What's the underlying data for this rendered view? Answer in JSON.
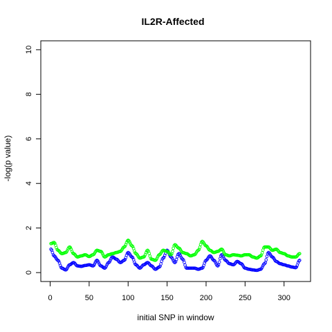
{
  "chart_data": {
    "type": "scatter",
    "title": "IL2R-Affected",
    "xlabel": "initial SNP in window",
    "ylabel": "-log(p value)",
    "xlim": [
      -12,
      334
    ],
    "ylim": [
      -0.4,
      10.4
    ],
    "x_ticks": [
      "0",
      "50",
      "100",
      "150",
      "200",
      "250",
      "300"
    ],
    "x_tick_values": [
      0,
      50,
      100,
      150,
      200,
      250,
      300
    ],
    "y_ticks": [
      "0",
      "2",
      "4",
      "6",
      "8",
      "10"
    ],
    "y_tick_values": [
      0,
      2,
      4,
      6,
      8,
      10
    ],
    "grid": false,
    "series": [
      {
        "color": "#0000ff",
        "marker": "open-circle",
        "points": [
          [
            1,
            1.05
          ],
          [
            5,
            0.75
          ],
          [
            10,
            0.55
          ],
          [
            15,
            0.2
          ],
          [
            20,
            0.12
          ],
          [
            25,
            0.35
          ],
          [
            30,
            0.45
          ],
          [
            35,
            0.3
          ],
          [
            40,
            0.28
          ],
          [
            45,
            0.32
          ],
          [
            50,
            0.35
          ],
          [
            55,
            0.3
          ],
          [
            60,
            0.55
          ],
          [
            65,
            0.3
          ],
          [
            70,
            0.2
          ],
          [
            75,
            0.45
          ],
          [
            80,
            0.7
          ],
          [
            85,
            0.6
          ],
          [
            90,
            0.45
          ],
          [
            95,
            0.55
          ],
          [
            100,
            0.9
          ],
          [
            105,
            0.7
          ],
          [
            110,
            0.35
          ],
          [
            115,
            0.2
          ],
          [
            120,
            0.35
          ],
          [
            125,
            0.45
          ],
          [
            130,
            0.3
          ],
          [
            135,
            0.15
          ],
          [
            140,
            0.25
          ],
          [
            145,
            0.65
          ],
          [
            150,
            1.0
          ],
          [
            155,
            0.7
          ],
          [
            160,
            0.45
          ],
          [
            165,
            0.85
          ],
          [
            170,
            0.6
          ],
          [
            175,
            0.2
          ],
          [
            180,
            0.2
          ],
          [
            185,
            0.2
          ],
          [
            190,
            0.15
          ],
          [
            195,
            0.2
          ],
          [
            200,
            0.55
          ],
          [
            205,
            0.75
          ],
          [
            210,
            0.55
          ],
          [
            215,
            0.3
          ],
          [
            220,
            0.8
          ],
          [
            225,
            0.55
          ],
          [
            230,
            0.4
          ],
          [
            235,
            0.35
          ],
          [
            240,
            0.5
          ],
          [
            245,
            0.4
          ],
          [
            250,
            0.2
          ],
          [
            255,
            0.15
          ],
          [
            260,
            0.12
          ],
          [
            265,
            0.1
          ],
          [
            270,
            0.15
          ],
          [
            275,
            0.4
          ],
          [
            280,
            0.9
          ],
          [
            285,
            0.7
          ],
          [
            290,
            0.5
          ],
          [
            295,
            0.4
          ],
          [
            300,
            0.35
          ],
          [
            305,
            0.3
          ],
          [
            310,
            0.25
          ],
          [
            315,
            0.22
          ],
          [
            320,
            0.55
          ]
        ]
      },
      {
        "color": "#00ff00",
        "marker": "open-circle",
        "points": [
          [
            1,
            1.3
          ],
          [
            5,
            1.35
          ],
          [
            10,
            1.0
          ],
          [
            15,
            0.85
          ],
          [
            20,
            0.9
          ],
          [
            25,
            1.15
          ],
          [
            30,
            0.85
          ],
          [
            35,
            0.7
          ],
          [
            40,
            0.75
          ],
          [
            45,
            0.8
          ],
          [
            50,
            0.72
          ],
          [
            55,
            0.8
          ],
          [
            60,
            1.0
          ],
          [
            65,
            0.95
          ],
          [
            70,
            0.7
          ],
          [
            75,
            0.8
          ],
          [
            80,
            0.85
          ],
          [
            85,
            0.9
          ],
          [
            90,
            0.95
          ],
          [
            95,
            1.15
          ],
          [
            100,
            1.45
          ],
          [
            105,
            1.2
          ],
          [
            110,
            0.85
          ],
          [
            115,
            0.65
          ],
          [
            120,
            0.7
          ],
          [
            125,
            1.0
          ],
          [
            130,
            0.6
          ],
          [
            135,
            0.55
          ],
          [
            140,
            0.8
          ],
          [
            145,
            1.0
          ],
          [
            150,
            0.95
          ],
          [
            155,
            0.8
          ],
          [
            160,
            1.25
          ],
          [
            165,
            1.1
          ],
          [
            170,
            0.9
          ],
          [
            175,
            0.85
          ],
          [
            180,
            0.75
          ],
          [
            185,
            0.8
          ],
          [
            190,
            1.0
          ],
          [
            195,
            1.4
          ],
          [
            200,
            1.2
          ],
          [
            205,
            1.0
          ],
          [
            210,
            0.9
          ],
          [
            215,
            0.95
          ],
          [
            220,
            1.05
          ],
          [
            225,
            0.8
          ],
          [
            230,
            0.75
          ],
          [
            235,
            0.8
          ],
          [
            240,
            0.78
          ],
          [
            245,
            0.75
          ],
          [
            250,
            0.8
          ],
          [
            255,
            0.8
          ],
          [
            260,
            0.7
          ],
          [
            265,
            0.65
          ],
          [
            270,
            0.75
          ],
          [
            275,
            1.15
          ],
          [
            280,
            1.15
          ],
          [
            285,
            1.0
          ],
          [
            290,
            1.05
          ],
          [
            295,
            0.9
          ],
          [
            300,
            0.85
          ],
          [
            305,
            0.75
          ],
          [
            310,
            0.7
          ],
          [
            315,
            0.7
          ],
          [
            320,
            0.85
          ]
        ]
      }
    ]
  }
}
